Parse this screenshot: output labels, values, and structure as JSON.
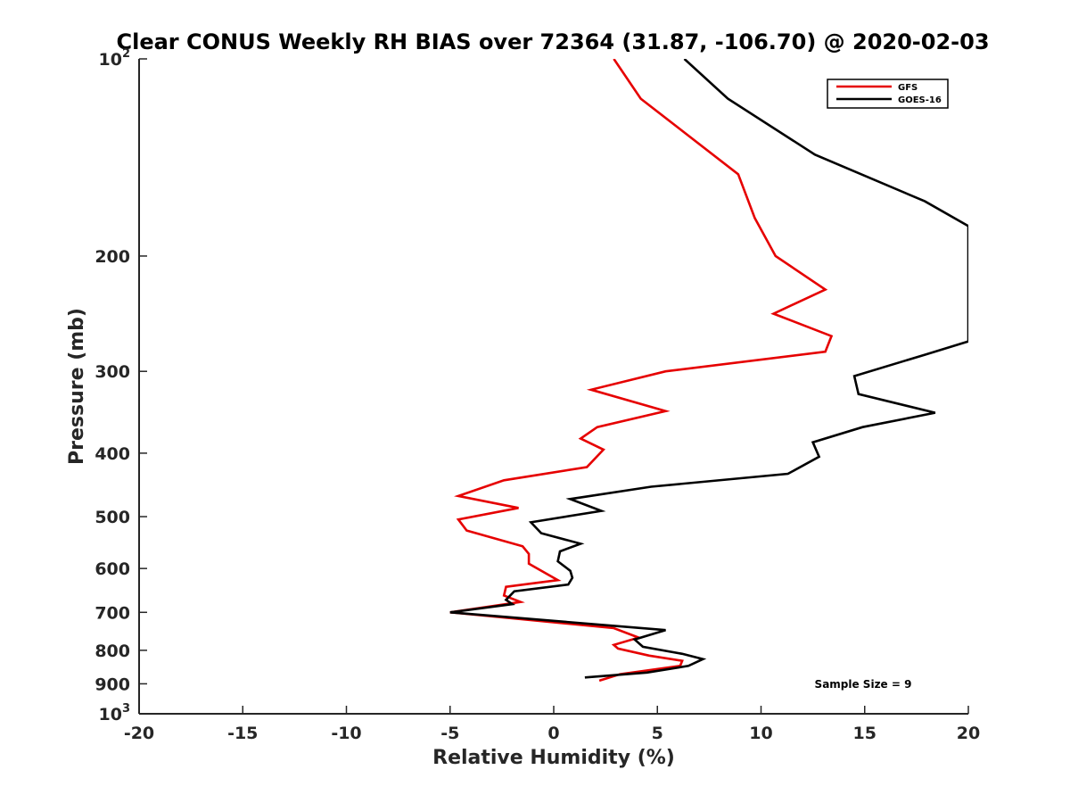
{
  "chart_data": {
    "type": "line",
    "title": "Clear CONUS Weekly RH BIAS over 72364 (31.87, -106.70) @ 2020-02-03",
    "xlabel": "Relative Humidity (%)",
    "ylabel": "Pressure (mb)",
    "xlim": [
      -20,
      20
    ],
    "ylim": [
      1000,
      100
    ],
    "yscale": "log",
    "y_reversed": true,
    "grid": false,
    "legend_position": "top-right",
    "annotation": "Sample Size = 9",
    "x_ticks": [
      "-20",
      "-15",
      "-10",
      "-5",
      "0",
      "5",
      "10",
      "15",
      "20"
    ],
    "y_ticks": [
      {
        "value": 100,
        "base": "10",
        "exp": "2"
      },
      {
        "value": 200,
        "label": "200"
      },
      {
        "value": 300,
        "label": "300"
      },
      {
        "value": 400,
        "label": "400"
      },
      {
        "value": 500,
        "label": "500"
      },
      {
        "value": 600,
        "label": "600"
      },
      {
        "value": 700,
        "label": "700"
      },
      {
        "value": 800,
        "label": "800"
      },
      {
        "value": 900,
        "label": "900"
      },
      {
        "value": 1000,
        "base": "10",
        "exp": "3"
      }
    ],
    "series": [
      {
        "name": "GFS",
        "color": "#e60000",
        "points": [
          [
            2.9,
            100
          ],
          [
            4.2,
            115
          ],
          [
            8.9,
            150
          ],
          [
            9.7,
            175
          ],
          [
            10.7,
            200
          ],
          [
            13.1,
            225
          ],
          [
            10.6,
            245
          ],
          [
            13.4,
            265
          ],
          [
            13.1,
            280
          ],
          [
            5.4,
            300
          ],
          [
            1.8,
            320
          ],
          [
            5.4,
            345
          ],
          [
            2.1,
            365
          ],
          [
            1.3,
            380
          ],
          [
            2.4,
            395
          ],
          [
            1.6,
            420
          ],
          [
            -2.4,
            440
          ],
          [
            -4.6,
            465
          ],
          [
            -1.7,
            485
          ],
          [
            -4.6,
            505
          ],
          [
            -4.2,
            525
          ],
          [
            -1.5,
            555
          ],
          [
            -1.2,
            570
          ],
          [
            -1.2,
            590
          ],
          [
            0.2,
            625
          ],
          [
            -2.3,
            640
          ],
          [
            -2.4,
            660
          ],
          [
            -1.6,
            675
          ],
          [
            -5.0,
            700
          ],
          [
            2.9,
            740
          ],
          [
            4.1,
            765
          ],
          [
            2.9,
            785
          ],
          [
            3.1,
            795
          ],
          [
            4.6,
            815
          ],
          [
            6.2,
            830
          ],
          [
            6.1,
            845
          ],
          [
            3.2,
            870
          ],
          [
            2.2,
            890
          ]
        ]
      },
      {
        "name": "GOES-16",
        "color": "#000000",
        "points": [
          [
            6.3,
            100
          ],
          [
            8.4,
            115
          ],
          [
            12.6,
            140
          ],
          [
            17.9,
            165
          ],
          [
            20.0,
            180
          ],
          [
            20.0,
            270
          ],
          [
            17.9,
            283
          ],
          [
            14.5,
            305
          ],
          [
            14.7,
            325
          ],
          [
            18.4,
            347
          ],
          [
            14.9,
            365
          ],
          [
            12.5,
            385
          ],
          [
            12.8,
            405
          ],
          [
            11.3,
            430
          ],
          [
            4.7,
            450
          ],
          [
            0.8,
            470
          ],
          [
            2.3,
            490
          ],
          [
            -1.1,
            510
          ],
          [
            -0.6,
            530
          ],
          [
            1.3,
            550
          ],
          [
            0.3,
            565
          ],
          [
            0.2,
            585
          ],
          [
            0.8,
            605
          ],
          [
            0.9,
            620
          ],
          [
            0.7,
            635
          ],
          [
            -1.9,
            650
          ],
          [
            -2.3,
            670
          ],
          [
            -2.0,
            680
          ],
          [
            -5.0,
            700
          ],
          [
            5.4,
            745
          ],
          [
            3.9,
            770
          ],
          [
            4.3,
            790
          ],
          [
            6.2,
            810
          ],
          [
            7.2,
            825
          ],
          [
            6.5,
            845
          ],
          [
            4.5,
            865
          ],
          [
            1.5,
            880
          ]
        ]
      }
    ]
  }
}
